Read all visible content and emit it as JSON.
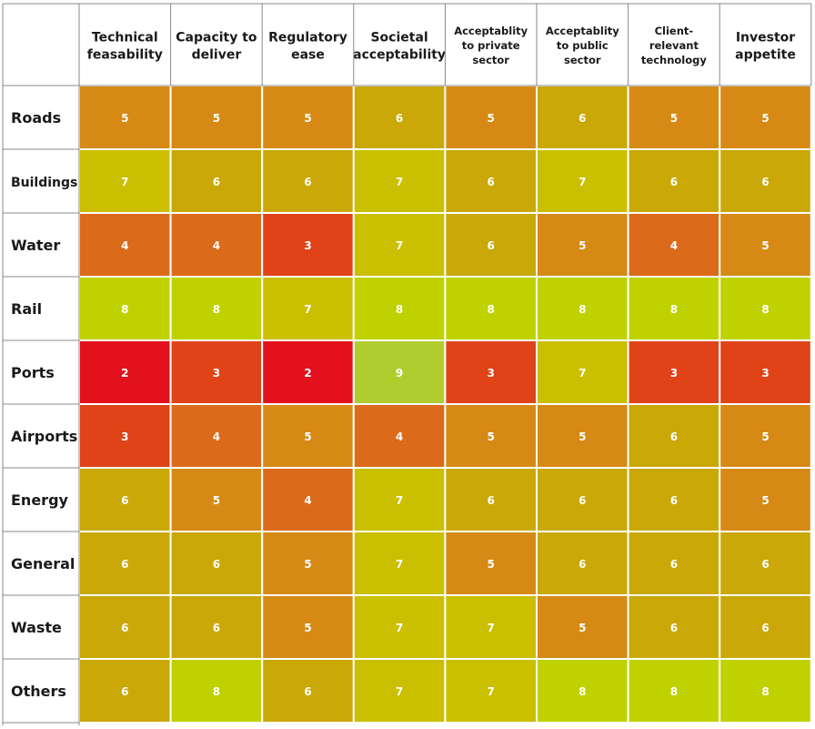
{
  "chart_data": {
    "type": "heatmap",
    "columns": [
      [
        "Technical",
        "feasability"
      ],
      [
        "Capacity to",
        "deliver"
      ],
      [
        "Regulatory",
        "ease"
      ],
      [
        "Societal",
        "acceptability"
      ],
      [
        "Acceptablity",
        "to private",
        "sector"
      ],
      [
        "Acceptablity",
        "to public",
        "sector"
      ],
      [
        "Client-",
        "relevant",
        "technology"
      ],
      [
        "Investor",
        "appetite"
      ]
    ],
    "rows": [
      "Roads",
      "Buildings",
      "Water",
      "Rail",
      "Ports",
      "Airports",
      "Energy",
      "General",
      "Waste",
      "Others"
    ],
    "values": [
      [
        5,
        5,
        5,
        6,
        5,
        6,
        5,
        5
      ],
      [
        7,
        6,
        6,
        7,
        6,
        7,
        6,
        6
      ],
      [
        4,
        4,
        3,
        7,
        6,
        5,
        4,
        5
      ],
      [
        8,
        8,
        7,
        8,
        8,
        8,
        8,
        8
      ],
      [
        2,
        3,
        2,
        9,
        3,
        7,
        3,
        3
      ],
      [
        3,
        4,
        5,
        4,
        5,
        5,
        6,
        5
      ],
      [
        6,
        5,
        4,
        7,
        6,
        6,
        6,
        5
      ],
      [
        6,
        6,
        5,
        7,
        5,
        6,
        6,
        6
      ],
      [
        6,
        6,
        5,
        7,
        7,
        5,
        6,
        6
      ],
      [
        6,
        8,
        6,
        7,
        7,
        8,
        8,
        8
      ]
    ],
    "colors": {
      "2": "#e3101d",
      "3": "#df4317",
      "4": "#db6a1a",
      "5": "#d68a15",
      "6": "#c9a808",
      "7": "#cabf00",
      "8": "#bfd200",
      "9": "#b0cd30"
    }
  }
}
